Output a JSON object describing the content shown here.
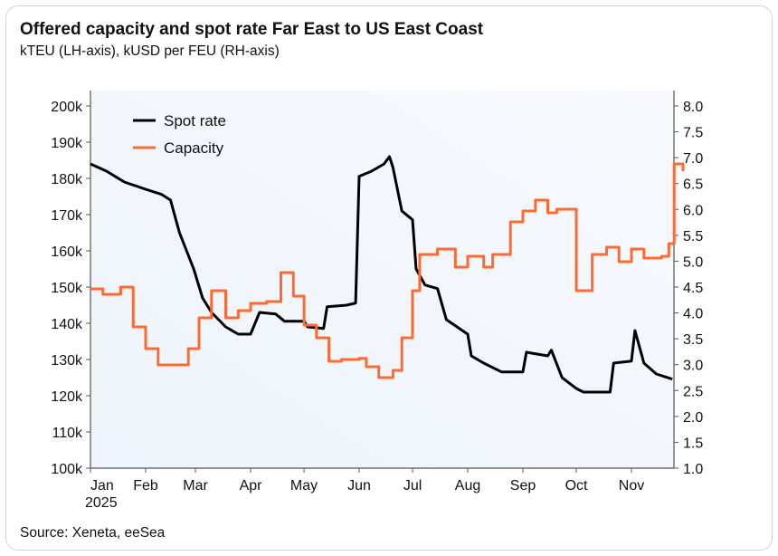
{
  "chart_data": {
    "type": "line",
    "title": "Offered capacity and spot rate Far East to US East Coast",
    "subtitle": "kTEU (LH-axis), kUSD per FEU (RH-axis)",
    "source": "Source: Xeneta, eeSea",
    "x_ticks": [
      "Jan",
      "Feb",
      "Mar",
      "Apr",
      "May",
      "Jun",
      "Jul",
      "Aug",
      "Sep",
      "Oct",
      "Nov"
    ],
    "x_year_label": "2025",
    "y_left": {
      "ylim": [
        100,
        200
      ],
      "ticks": [
        "100k",
        "110k",
        "120k",
        "130k",
        "140k",
        "150k",
        "160k",
        "170k",
        "180k",
        "190k",
        "200k"
      ]
    },
    "y_right": {
      "ylim": [
        1.0,
        8.0
      ],
      "ticks": [
        "1.0",
        "1.5",
        "2.0",
        "2.5",
        "3.0",
        "3.5",
        "4.0",
        "4.5",
        "5.0",
        "5.5",
        "6.0",
        "6.5",
        "7.0",
        "7.5",
        "8.0"
      ]
    },
    "grid": false,
    "legend_placement": "top-left",
    "series": [
      {
        "name": "Spot rate",
        "axis": "right",
        "color": "#000000",
        "step": false,
        "points": [
          [
            "2025-01-01",
            6.88
          ],
          [
            "2025-01-10",
            6.74
          ],
          [
            "2025-01-20",
            6.53
          ],
          [
            "2025-02-01",
            6.39
          ],
          [
            "2025-02-10",
            6.29
          ],
          [
            "2025-02-15",
            6.18
          ],
          [
            "2025-02-20",
            5.55
          ],
          [
            "2025-02-28",
            4.85
          ],
          [
            "2025-03-05",
            4.29
          ],
          [
            "2025-03-10",
            4.01
          ],
          [
            "2025-03-18",
            3.73
          ],
          [
            "2025-03-25",
            3.59
          ],
          [
            "2025-04-01",
            3.59
          ],
          [
            "2025-04-06",
            4.01
          ],
          [
            "2025-04-15",
            3.98
          ],
          [
            "2025-04-20",
            3.84
          ],
          [
            "2025-05-01",
            3.84
          ],
          [
            "2025-05-03",
            3.73
          ],
          [
            "2025-05-12",
            3.7
          ],
          [
            "2025-05-14",
            4.12
          ],
          [
            "2025-05-25",
            4.15
          ],
          [
            "2025-05-30",
            4.19
          ],
          [
            "2025-06-01",
            6.64
          ],
          [
            "2025-06-08",
            6.74
          ],
          [
            "2025-06-15",
            6.88
          ],
          [
            "2025-06-18",
            7.02
          ],
          [
            "2025-06-20",
            6.81
          ],
          [
            "2025-06-25",
            5.97
          ],
          [
            "2025-07-01",
            5.8
          ],
          [
            "2025-07-03",
            4.85
          ],
          [
            "2025-07-08",
            4.54
          ],
          [
            "2025-07-15",
            4.47
          ],
          [
            "2025-07-20",
            3.87
          ],
          [
            "2025-08-01",
            3.59
          ],
          [
            "2025-08-03",
            3.17
          ],
          [
            "2025-08-10",
            3.03
          ],
          [
            "2025-08-20",
            2.86
          ],
          [
            "2025-09-01",
            2.86
          ],
          [
            "2025-09-03",
            3.24
          ],
          [
            "2025-09-15",
            3.17
          ],
          [
            "2025-09-17",
            3.28
          ],
          [
            "2025-09-23",
            2.75
          ],
          [
            "2025-10-01",
            2.54
          ],
          [
            "2025-10-05",
            2.47
          ],
          [
            "2025-10-20",
            2.47
          ],
          [
            "2025-10-22",
            3.03
          ],
          [
            "2025-11-01",
            3.07
          ],
          [
            "2025-11-03",
            3.66
          ],
          [
            "2025-11-08",
            3.03
          ],
          [
            "2025-11-15",
            2.82
          ],
          [
            "2025-11-24",
            2.72
          ]
        ]
      },
      {
        "name": "Capacity",
        "axis": "left",
        "color": "#ff6a33",
        "step": true,
        "points": [
          [
            "2025-01-01",
            149.5
          ],
          [
            "2025-01-08",
            148
          ],
          [
            "2025-01-18",
            150
          ],
          [
            "2025-01-25",
            139
          ],
          [
            "2025-02-01",
            133
          ],
          [
            "2025-02-08",
            128.5
          ],
          [
            "2025-02-25",
            133
          ],
          [
            "2025-03-03",
            141.5
          ],
          [
            "2025-03-10",
            149
          ],
          [
            "2025-03-18",
            141.5
          ],
          [
            "2025-03-25",
            143.5
          ],
          [
            "2025-04-01",
            145.5
          ],
          [
            "2025-04-10",
            146
          ],
          [
            "2025-04-18",
            154
          ],
          [
            "2025-04-25",
            147.5
          ],
          [
            "2025-05-01",
            139.5
          ],
          [
            "2025-05-08",
            136
          ],
          [
            "2025-05-15",
            129.5
          ],
          [
            "2025-05-22",
            130
          ],
          [
            "2025-06-01",
            130.3
          ],
          [
            "2025-06-05",
            128
          ],
          [
            "2025-06-12",
            125
          ],
          [
            "2025-06-20",
            127
          ],
          [
            "2025-06-25",
            136
          ],
          [
            "2025-07-01",
            149
          ],
          [
            "2025-07-05",
            159
          ],
          [
            "2025-07-15",
            160.5
          ],
          [
            "2025-07-25",
            155.5
          ],
          [
            "2025-08-01",
            158.5
          ],
          [
            "2025-08-10",
            155.5
          ],
          [
            "2025-08-15",
            159
          ],
          [
            "2025-08-25",
            168
          ],
          [
            "2025-09-01",
            171
          ],
          [
            "2025-09-08",
            174
          ],
          [
            "2025-09-15",
            170.5
          ],
          [
            "2025-09-20",
            171.5
          ],
          [
            "2025-10-01",
            149
          ],
          [
            "2025-10-10",
            159
          ],
          [
            "2025-10-18",
            161
          ],
          [
            "2025-10-25",
            157
          ],
          [
            "2025-11-01",
            160.5
          ],
          [
            "2025-11-08",
            158
          ],
          [
            "2025-11-18",
            158.5
          ],
          [
            "2025-11-22",
            162
          ],
          [
            "2025-11-25",
            184
          ],
          [
            "2025-11-30",
            182
          ]
        ]
      }
    ]
  }
}
